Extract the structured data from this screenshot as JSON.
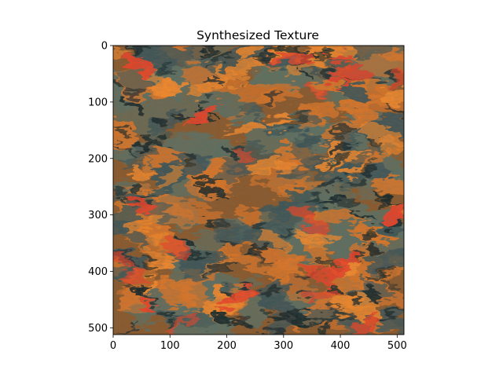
{
  "chart_data": {
    "type": "heatmap",
    "title": "Synthesized Texture",
    "xlabel": "",
    "ylabel": "",
    "image_size": [
      512,
      512
    ],
    "xlim": [
      0,
      512
    ],
    "ylim": [
      512,
      0
    ],
    "x_ticks": [
      0,
      100,
      200,
      300,
      400,
      500
    ],
    "y_ticks": [
      0,
      100,
      200,
      300,
      400,
      500
    ],
    "x_tick_labels": [
      "0",
      "100",
      "200",
      "300",
      "400",
      "500"
    ],
    "y_tick_labels": [
      "0",
      "100",
      "200",
      "300",
      "400",
      "500"
    ],
    "grid": false,
    "palette": {
      "dark": "#1b2a2c",
      "slate": "#3f5658",
      "teal_gray": "#5d7064",
      "brown": "#8a5a2e",
      "orange": "#d9762a",
      "bright_orange": "#f0892e",
      "red_orange": "#e8442a"
    }
  }
}
